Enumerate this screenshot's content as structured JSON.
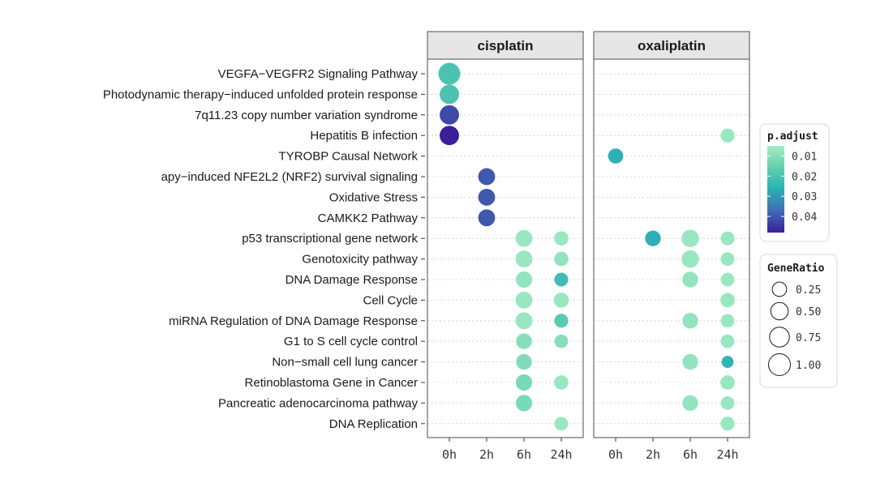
{
  "chart_data": {
    "type": "scatter",
    "title": "",
    "xlabel": "",
    "ylabel": "",
    "panels": [
      "cisplatin",
      "oxaliplatin"
    ],
    "x_categories": [
      "0h",
      "2h",
      "6h",
      "24h"
    ],
    "terms": [
      "VEGFA−VEGFR2 Signaling Pathway",
      "Photodynamic therapy−induced unfolded protein response",
      "7q11.23 copy number variation syndrome",
      "Hepatitis B infection",
      "TYROBP Causal Network",
      "apy−induced NFE2L2 (NRF2) survival signaling",
      "Oxidative Stress",
      "CAMKK2  Pathway",
      "p53 transcriptional gene network",
      "Genotoxicity pathway",
      "DNA Damage Response",
      "Cell Cycle",
      "miRNA Regulation of DNA Damage Response",
      "G1 to S cell cycle control",
      "Non−small cell lung cancer",
      "Retinoblastoma Gene in Cancer",
      "Pancreatic adenocarcinoma pathway",
      "DNA Replication"
    ],
    "points": [
      {
        "panel": "cisplatin",
        "term": "VEGFA−VEGFR2 Signaling Pathway",
        "x": "0h",
        "gene_ratio": 1.0,
        "p_adjust": 0.02
      },
      {
        "panel": "cisplatin",
        "term": "Photodynamic therapy−induced unfolded protein response",
        "x": "0h",
        "gene_ratio": 0.7,
        "p_adjust": 0.02
      },
      {
        "panel": "cisplatin",
        "term": "7q11.23 copy number variation syndrome",
        "x": "0h",
        "gene_ratio": 0.7,
        "p_adjust": 0.042
      },
      {
        "panel": "cisplatin",
        "term": "Hepatitis B infection",
        "x": "0h",
        "gene_ratio": 0.7,
        "p_adjust": 0.048
      },
      {
        "panel": "cisplatin",
        "term": "apy−induced NFE2L2 (NRF2) survival signaling",
        "x": "2h",
        "gene_ratio": 0.45,
        "p_adjust": 0.04
      },
      {
        "panel": "cisplatin",
        "term": "Oxidative Stress",
        "x": "2h",
        "gene_ratio": 0.45,
        "p_adjust": 0.04
      },
      {
        "panel": "cisplatin",
        "term": "CAMKK2  Pathway",
        "x": "2h",
        "gene_ratio": 0.45,
        "p_adjust": 0.04
      },
      {
        "panel": "cisplatin",
        "term": "p53 transcriptional gene network",
        "x": "6h",
        "gene_ratio": 0.45,
        "p_adjust": 0.007
      },
      {
        "panel": "cisplatin",
        "term": "p53 transcriptional gene network",
        "x": "24h",
        "gene_ratio": 0.25,
        "p_adjust": 0.007
      },
      {
        "panel": "cisplatin",
        "term": "Genotoxicity pathway",
        "x": "6h",
        "gene_ratio": 0.45,
        "p_adjust": 0.007
      },
      {
        "panel": "cisplatin",
        "term": "Genotoxicity pathway",
        "x": "24h",
        "gene_ratio": 0.25,
        "p_adjust": 0.008
      },
      {
        "panel": "cisplatin",
        "term": "DNA Damage Response",
        "x": "6h",
        "gene_ratio": 0.4,
        "p_adjust": 0.008
      },
      {
        "panel": "cisplatin",
        "term": "DNA Damage Response",
        "x": "24h",
        "gene_ratio": 0.22,
        "p_adjust": 0.022
      },
      {
        "panel": "cisplatin",
        "term": "Cell Cycle",
        "x": "6h",
        "gene_ratio": 0.45,
        "p_adjust": 0.007
      },
      {
        "panel": "cisplatin",
        "term": "Cell Cycle",
        "x": "24h",
        "gene_ratio": 0.3,
        "p_adjust": 0.007
      },
      {
        "panel": "cisplatin",
        "term": "miRNA Regulation of DNA Damage Response",
        "x": "6h",
        "gene_ratio": 0.45,
        "p_adjust": 0.007
      },
      {
        "panel": "cisplatin",
        "term": "miRNA Regulation of DNA Damage Response",
        "x": "24h",
        "gene_ratio": 0.22,
        "p_adjust": 0.017
      },
      {
        "panel": "cisplatin",
        "term": "G1 to S cell cycle control",
        "x": "6h",
        "gene_ratio": 0.35,
        "p_adjust": 0.01
      },
      {
        "panel": "cisplatin",
        "term": "G1 to S cell cycle control",
        "x": "24h",
        "gene_ratio": 0.2,
        "p_adjust": 0.01
      },
      {
        "panel": "cisplatin",
        "term": "Non−small cell lung cancer",
        "x": "6h",
        "gene_ratio": 0.35,
        "p_adjust": 0.011
      },
      {
        "panel": "cisplatin",
        "term": "Retinoblastoma Gene in Cancer",
        "x": "6h",
        "gene_ratio": 0.4,
        "p_adjust": 0.012
      },
      {
        "panel": "cisplatin",
        "term": "Retinoblastoma Gene in Cancer",
        "x": "24h",
        "gene_ratio": 0.25,
        "p_adjust": 0.007
      },
      {
        "panel": "cisplatin",
        "term": "Pancreatic adenocarcinoma pathway",
        "x": "6h",
        "gene_ratio": 0.4,
        "p_adjust": 0.012
      },
      {
        "panel": "cisplatin",
        "term": "DNA Replication",
        "x": "24h",
        "gene_ratio": 0.2,
        "p_adjust": 0.007
      },
      {
        "panel": "oxaliplatin",
        "term": "Hepatitis B infection",
        "x": "24h",
        "gene_ratio": 0.22,
        "p_adjust": 0.007
      },
      {
        "panel": "oxaliplatin",
        "term": "TYROBP Causal Network",
        "x": "0h",
        "gene_ratio": 0.3,
        "p_adjust": 0.026
      },
      {
        "panel": "oxaliplatin",
        "term": "p53 transcriptional gene network",
        "x": "2h",
        "gene_ratio": 0.35,
        "p_adjust": 0.026
      },
      {
        "panel": "oxaliplatin",
        "term": "p53 transcriptional gene network",
        "x": "6h",
        "gene_ratio": 0.5,
        "p_adjust": 0.007
      },
      {
        "panel": "oxaliplatin",
        "term": "p53 transcriptional gene network",
        "x": "24h",
        "gene_ratio": 0.22,
        "p_adjust": 0.007
      },
      {
        "panel": "oxaliplatin",
        "term": "Genotoxicity pathway",
        "x": "6h",
        "gene_ratio": 0.5,
        "p_adjust": 0.007
      },
      {
        "panel": "oxaliplatin",
        "term": "Genotoxicity pathway",
        "x": "24h",
        "gene_ratio": 0.2,
        "p_adjust": 0.007
      },
      {
        "panel": "oxaliplatin",
        "term": "DNA Damage Response",
        "x": "6h",
        "gene_ratio": 0.35,
        "p_adjust": 0.008
      },
      {
        "panel": "oxaliplatin",
        "term": "DNA Damage Response",
        "x": "24h",
        "gene_ratio": 0.2,
        "p_adjust": 0.007
      },
      {
        "panel": "oxaliplatin",
        "term": "Cell Cycle",
        "x": "24h",
        "gene_ratio": 0.25,
        "p_adjust": 0.007
      },
      {
        "panel": "oxaliplatin",
        "term": "miRNA Regulation of DNA Damage Response",
        "x": "6h",
        "gene_ratio": 0.35,
        "p_adjust": 0.008
      },
      {
        "panel": "oxaliplatin",
        "term": "miRNA Regulation of DNA Damage Response",
        "x": "24h",
        "gene_ratio": 0.2,
        "p_adjust": 0.007
      },
      {
        "panel": "oxaliplatin",
        "term": "G1 to S cell cycle control",
        "x": "24h",
        "gene_ratio": 0.2,
        "p_adjust": 0.007
      },
      {
        "panel": "oxaliplatin",
        "term": "Non−small cell lung cancer",
        "x": "6h",
        "gene_ratio": 0.35,
        "p_adjust": 0.008
      },
      {
        "panel": "oxaliplatin",
        "term": "Non−small cell lung cancer",
        "x": "24h",
        "gene_ratio": 0.12,
        "p_adjust": 0.025
      },
      {
        "panel": "oxaliplatin",
        "term": "Retinoblastoma Gene in Cancer",
        "x": "24h",
        "gene_ratio": 0.25,
        "p_adjust": 0.007
      },
      {
        "panel": "oxaliplatin",
        "term": "Pancreatic adenocarcinoma pathway",
        "x": "6h",
        "gene_ratio": 0.35,
        "p_adjust": 0.008
      },
      {
        "panel": "oxaliplatin",
        "term": "Pancreatic adenocarcinoma pathway",
        "x": "24h",
        "gene_ratio": 0.2,
        "p_adjust": 0.007
      },
      {
        "panel": "oxaliplatin",
        "term": "DNA Replication",
        "x": "24h",
        "gene_ratio": 0.22,
        "p_adjust": 0.007
      }
    ],
    "color_legend": {
      "title": "p.adjust",
      "range": [
        0.005,
        0.048
      ],
      "ticks": [
        0.01,
        0.02,
        0.03,
        0.04
      ],
      "tick_labels": [
        "0.01",
        "0.02",
        "0.03",
        "0.04"
      ],
      "colors": [
        "#a6ecc4",
        "#62cfae",
        "#2ab0b4",
        "#3f6cb5",
        "#3b1f99"
      ]
    },
    "size_legend": {
      "title": "GeneRatio",
      "values": [
        0.25,
        0.5,
        0.75,
        1.0
      ],
      "labels": [
        "0.25",
        "0.50",
        "0.75",
        "1.00"
      ]
    },
    "grid": true,
    "legend_position": "right"
  }
}
